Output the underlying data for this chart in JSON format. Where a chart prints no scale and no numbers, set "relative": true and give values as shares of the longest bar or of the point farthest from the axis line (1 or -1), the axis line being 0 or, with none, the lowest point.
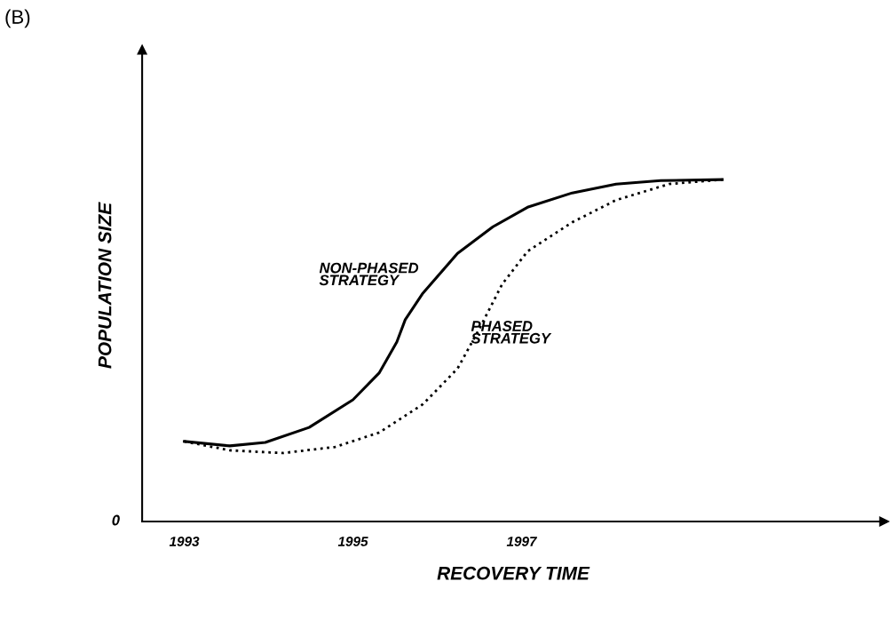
{
  "chart_data": {
    "type": "line",
    "title": "(B)",
    "xlabel": "RECOVERY TIME",
    "ylabel": "POPULATION SIZE",
    "relative": true,
    "xlim": [
      1992.5,
      2001.3
    ],
    "xticks": [
      1993,
      1995,
      1997
    ],
    "annotations": [
      "0"
    ],
    "series": [
      {
        "name": "NON-PHASED\nSTRATEGY",
        "color": "#000000",
        "line_style": "solid",
        "x": [
          1993.0,
          1993.54,
          1993.96,
          1994.48,
          1995.0,
          1995.31,
          1995.52,
          1995.62,
          1995.83,
          1996.24,
          1996.66,
          1997.07,
          1997.6,
          1998.12,
          1998.65,
          1999.38
        ],
        "values": [
          0.234,
          0.221,
          0.231,
          0.275,
          0.356,
          0.434,
          0.525,
          0.59,
          0.668,
          0.784,
          0.862,
          0.919,
          0.961,
          0.987,
          0.997,
          1.0
        ]
      },
      {
        "name": "PHASED\nSTRATEGY",
        "color": "#000000",
        "line_style": "dotted",
        "x": [
          1993.0,
          1993.54,
          1994.17,
          1994.79,
          1995.31,
          1995.83,
          1996.24,
          1996.5,
          1996.77,
          1997.07,
          1997.6,
          1998.12,
          1998.75,
          1999.38
        ],
        "values": [
          0.234,
          0.208,
          0.2,
          0.218,
          0.26,
          0.343,
          0.447,
          0.564,
          0.694,
          0.79,
          0.875,
          0.94,
          0.987,
          1.0
        ]
      }
    ]
  }
}
